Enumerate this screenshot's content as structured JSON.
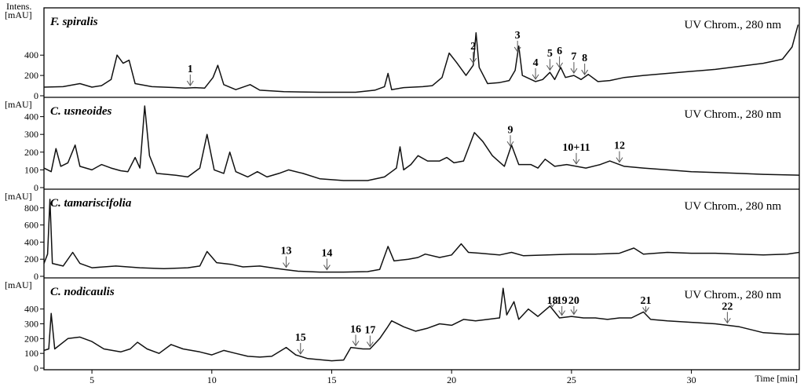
{
  "chart_data": {
    "type": "line",
    "x_axis_label": "Time [min]",
    "x_ticks": [
      5,
      10,
      15,
      20,
      25,
      30
    ],
    "xlim": [
      3,
      34.5
    ],
    "intensity_label": "Intens.",
    "y_unit": "[mAU]",
    "detector": "UV Chrom., 280 nm",
    "panels": [
      {
        "species": "F. spiralis",
        "ylim": [
          0,
          850
        ],
        "y_ticks": [
          0,
          200,
          400
        ],
        "points": [
          [
            3,
            85
          ],
          [
            3.8,
            90
          ],
          [
            4.5,
            120
          ],
          [
            5,
            85
          ],
          [
            5.4,
            100
          ],
          [
            5.8,
            160
          ],
          [
            6.05,
            400
          ],
          [
            6.3,
            320
          ],
          [
            6.55,
            350
          ],
          [
            6.8,
            120
          ],
          [
            7.5,
            90
          ],
          [
            8.5,
            80
          ],
          [
            8.9,
            75
          ],
          [
            9.3,
            80
          ],
          [
            9.7,
            75
          ],
          [
            10.05,
            180
          ],
          [
            10.25,
            300
          ],
          [
            10.5,
            110
          ],
          [
            11,
            60
          ],
          [
            11.6,
            110
          ],
          [
            12,
            55
          ],
          [
            13,
            40
          ],
          [
            14.5,
            35
          ],
          [
            16,
            35
          ],
          [
            16.8,
            55
          ],
          [
            17.2,
            90
          ],
          [
            17.35,
            220
          ],
          [
            17.5,
            60
          ],
          [
            18,
            80
          ],
          [
            18.8,
            90
          ],
          [
            19.2,
            100
          ],
          [
            19.6,
            180
          ],
          [
            19.9,
            420
          ],
          [
            20.2,
            330
          ],
          [
            20.6,
            200
          ],
          [
            20.9,
            300
          ],
          [
            21.02,
            620
          ],
          [
            21.15,
            280
          ],
          [
            21.5,
            120
          ],
          [
            22,
            130
          ],
          [
            22.4,
            150
          ],
          [
            22.65,
            250
          ],
          [
            22.8,
            490
          ],
          [
            22.95,
            200
          ],
          [
            23.5,
            140
          ],
          [
            23.8,
            160
          ],
          [
            24.1,
            230
          ],
          [
            24.3,
            160
          ],
          [
            24.55,
            280
          ],
          [
            24.75,
            180
          ],
          [
            25.1,
            200
          ],
          [
            25.4,
            160
          ],
          [
            25.7,
            210
          ],
          [
            26.1,
            140
          ],
          [
            26.6,
            150
          ],
          [
            27.2,
            180
          ],
          [
            28,
            200
          ],
          [
            29,
            220
          ],
          [
            30,
            240
          ],
          [
            31,
            260
          ],
          [
            32,
            290
          ],
          [
            33,
            320
          ],
          [
            33.8,
            360
          ],
          [
            34.2,
            480
          ],
          [
            34.45,
            700
          ]
        ],
        "peak_labels": [
          {
            "n": "1",
            "x": 9.1
          },
          {
            "n": "2",
            "x": 20.9
          },
          {
            "n": "3",
            "x": 22.75
          },
          {
            "n": "4",
            "x": 23.5
          },
          {
            "n": "5",
            "x": 24.1
          },
          {
            "n": "6",
            "x": 24.5
          },
          {
            "n": "7",
            "x": 25.1
          },
          {
            "n": "8",
            "x": 25.55
          }
        ]
      },
      {
        "species": "C. usneoides",
        "ylim": [
          0,
          500
        ],
        "y_ticks": [
          0,
          100,
          200,
          300,
          400
        ],
        "points": [
          [
            3,
            110
          ],
          [
            3.3,
            90
          ],
          [
            3.5,
            220
          ],
          [
            3.7,
            120
          ],
          [
            4,
            140
          ],
          [
            4.3,
            240
          ],
          [
            4.5,
            120
          ],
          [
            5,
            100
          ],
          [
            5.4,
            130
          ],
          [
            5.8,
            110
          ],
          [
            6.2,
            95
          ],
          [
            6.5,
            90
          ],
          [
            6.8,
            170
          ],
          [
            7,
            110
          ],
          [
            7.2,
            460
          ],
          [
            7.4,
            180
          ],
          [
            7.7,
            80
          ],
          [
            8.5,
            70
          ],
          [
            9,
            60
          ],
          [
            9.5,
            110
          ],
          [
            9.8,
            300
          ],
          [
            10.1,
            100
          ],
          [
            10.5,
            80
          ],
          [
            10.75,
            200
          ],
          [
            11,
            90
          ],
          [
            11.5,
            60
          ],
          [
            11.9,
            90
          ],
          [
            12.3,
            60
          ],
          [
            12.8,
            80
          ],
          [
            13.2,
            100
          ],
          [
            13.8,
            80
          ],
          [
            14.5,
            50
          ],
          [
            15.5,
            40
          ],
          [
            16.5,
            40
          ],
          [
            17.2,
            60
          ],
          [
            17.5,
            90
          ],
          [
            17.7,
            110
          ],
          [
            17.85,
            230
          ],
          [
            18,
            100
          ],
          [
            18.3,
            130
          ],
          [
            18.6,
            180
          ],
          [
            19,
            150
          ],
          [
            19.5,
            150
          ],
          [
            19.8,
            170
          ],
          [
            20.1,
            140
          ],
          [
            20.5,
            150
          ],
          [
            20.95,
            310
          ],
          [
            21.3,
            260
          ],
          [
            21.7,
            180
          ],
          [
            22.2,
            120
          ],
          [
            22.5,
            240
          ],
          [
            22.8,
            130
          ],
          [
            23.3,
            130
          ],
          [
            23.6,
            110
          ],
          [
            23.9,
            160
          ],
          [
            24.3,
            120
          ],
          [
            24.8,
            130
          ],
          [
            25.2,
            120
          ],
          [
            25.6,
            110
          ],
          [
            26.2,
            130
          ],
          [
            26.6,
            150
          ],
          [
            27.2,
            120
          ],
          [
            28,
            110
          ],
          [
            29,
            100
          ],
          [
            30,
            90
          ],
          [
            31,
            85
          ],
          [
            32,
            80
          ],
          [
            33,
            75
          ],
          [
            34.5,
            70
          ]
        ],
        "peak_labels": [
          {
            "n": "9",
            "x": 22.45
          },
          {
            "n": "10+11",
            "x": 25.2
          },
          {
            "n": "12",
            "x": 27
          }
        ]
      },
      {
        "species": "C. tamariscifolia",
        "ylim": [
          0,
          1000
        ],
        "y_ticks": [
          0,
          200,
          400,
          600,
          800
        ],
        "points": [
          [
            3,
            150
          ],
          [
            3.15,
            260
          ],
          [
            3.25,
            900
          ],
          [
            3.35,
            150
          ],
          [
            3.8,
            120
          ],
          [
            4.2,
            280
          ],
          [
            4.5,
            150
          ],
          [
            5,
            100
          ],
          [
            6,
            120
          ],
          [
            7,
            100
          ],
          [
            8,
            90
          ],
          [
            9,
            100
          ],
          [
            9.5,
            120
          ],
          [
            9.8,
            290
          ],
          [
            10.2,
            160
          ],
          [
            10.8,
            140
          ],
          [
            11.3,
            110
          ],
          [
            12,
            120
          ],
          [
            12.5,
            100
          ],
          [
            13,
            80
          ],
          [
            13.6,
            60
          ],
          [
            14.5,
            50
          ],
          [
            15.5,
            50
          ],
          [
            16.5,
            55
          ],
          [
            17,
            80
          ],
          [
            17.35,
            350
          ],
          [
            17.6,
            180
          ],
          [
            18.2,
            200
          ],
          [
            18.6,
            220
          ],
          [
            18.9,
            260
          ],
          [
            19.5,
            220
          ],
          [
            20,
            250
          ],
          [
            20.4,
            380
          ],
          [
            20.7,
            280
          ],
          [
            21.2,
            270
          ],
          [
            22,
            250
          ],
          [
            22.5,
            280
          ],
          [
            23,
            240
          ],
          [
            24,
            250
          ],
          [
            25,
            260
          ],
          [
            26,
            260
          ],
          [
            27,
            270
          ],
          [
            27.6,
            330
          ],
          [
            28,
            260
          ],
          [
            29,
            280
          ],
          [
            30,
            270
          ],
          [
            31,
            270
          ],
          [
            32,
            260
          ],
          [
            33,
            250
          ],
          [
            34,
            260
          ],
          [
            34.5,
            280
          ]
        ],
        "peak_labels": [
          {
            "n": "13",
            "x": 13.1
          },
          {
            "n": "14",
            "x": 14.8
          }
        ]
      },
      {
        "species": "C. nodicaulis",
        "ylim": [
          0,
          600
        ],
        "y_ticks": [
          0,
          100,
          200,
          300,
          400
        ],
        "points": [
          [
            3,
            120
          ],
          [
            3.2,
            130
          ],
          [
            3.3,
            370
          ],
          [
            3.45,
            130
          ],
          [
            4,
            200
          ],
          [
            4.5,
            210
          ],
          [
            5,
            180
          ],
          [
            5.5,
            130
          ],
          [
            6.2,
            110
          ],
          [
            6.6,
            130
          ],
          [
            6.9,
            175
          ],
          [
            7.3,
            130
          ],
          [
            7.8,
            100
          ],
          [
            8.3,
            160
          ],
          [
            8.8,
            130
          ],
          [
            9.5,
            110
          ],
          [
            10,
            90
          ],
          [
            10.5,
            120
          ],
          [
            11,
            100
          ],
          [
            11.5,
            80
          ],
          [
            12,
            75
          ],
          [
            12.5,
            80
          ],
          [
            13.1,
            140
          ],
          [
            13.5,
            90
          ],
          [
            14,
            65
          ],
          [
            15,
            50
          ],
          [
            15.5,
            55
          ],
          [
            15.8,
            140
          ],
          [
            16.3,
            130
          ],
          [
            16.6,
            130
          ],
          [
            17,
            200
          ],
          [
            17.3,
            270
          ],
          [
            17.5,
            320
          ],
          [
            18,
            280
          ],
          [
            18.5,
            250
          ],
          [
            19,
            270
          ],
          [
            19.5,
            300
          ],
          [
            20,
            290
          ],
          [
            20.5,
            330
          ],
          [
            21,
            320
          ],
          [
            21.5,
            330
          ],
          [
            22,
            340
          ],
          [
            22.15,
            540
          ],
          [
            22.3,
            360
          ],
          [
            22.6,
            450
          ],
          [
            22.8,
            330
          ],
          [
            23.2,
            400
          ],
          [
            23.6,
            350
          ],
          [
            24.1,
            420
          ],
          [
            24.5,
            340
          ],
          [
            25,
            350
          ],
          [
            25.5,
            340
          ],
          [
            26,
            340
          ],
          [
            26.5,
            330
          ],
          [
            27,
            340
          ],
          [
            27.5,
            340
          ],
          [
            28,
            380
          ],
          [
            28.3,
            330
          ],
          [
            29,
            320
          ],
          [
            30,
            310
          ],
          [
            31,
            300
          ],
          [
            32,
            280
          ],
          [
            33,
            240
          ],
          [
            34,
            230
          ],
          [
            34.5,
            230
          ]
        ],
        "peak_labels": [
          {
            "n": "15",
            "x": 13.7
          },
          {
            "n": "16",
            "x": 16
          },
          {
            "n": "17",
            "x": 16.6
          },
          {
            "n": "18",
            "x": 24.2
          },
          {
            "n": "19",
            "x": 24.6
          },
          {
            "n": "20",
            "x": 25.1
          },
          {
            "n": "21",
            "x": 28.1
          },
          {
            "n": "22",
            "x": 31.5
          }
        ]
      }
    ]
  }
}
